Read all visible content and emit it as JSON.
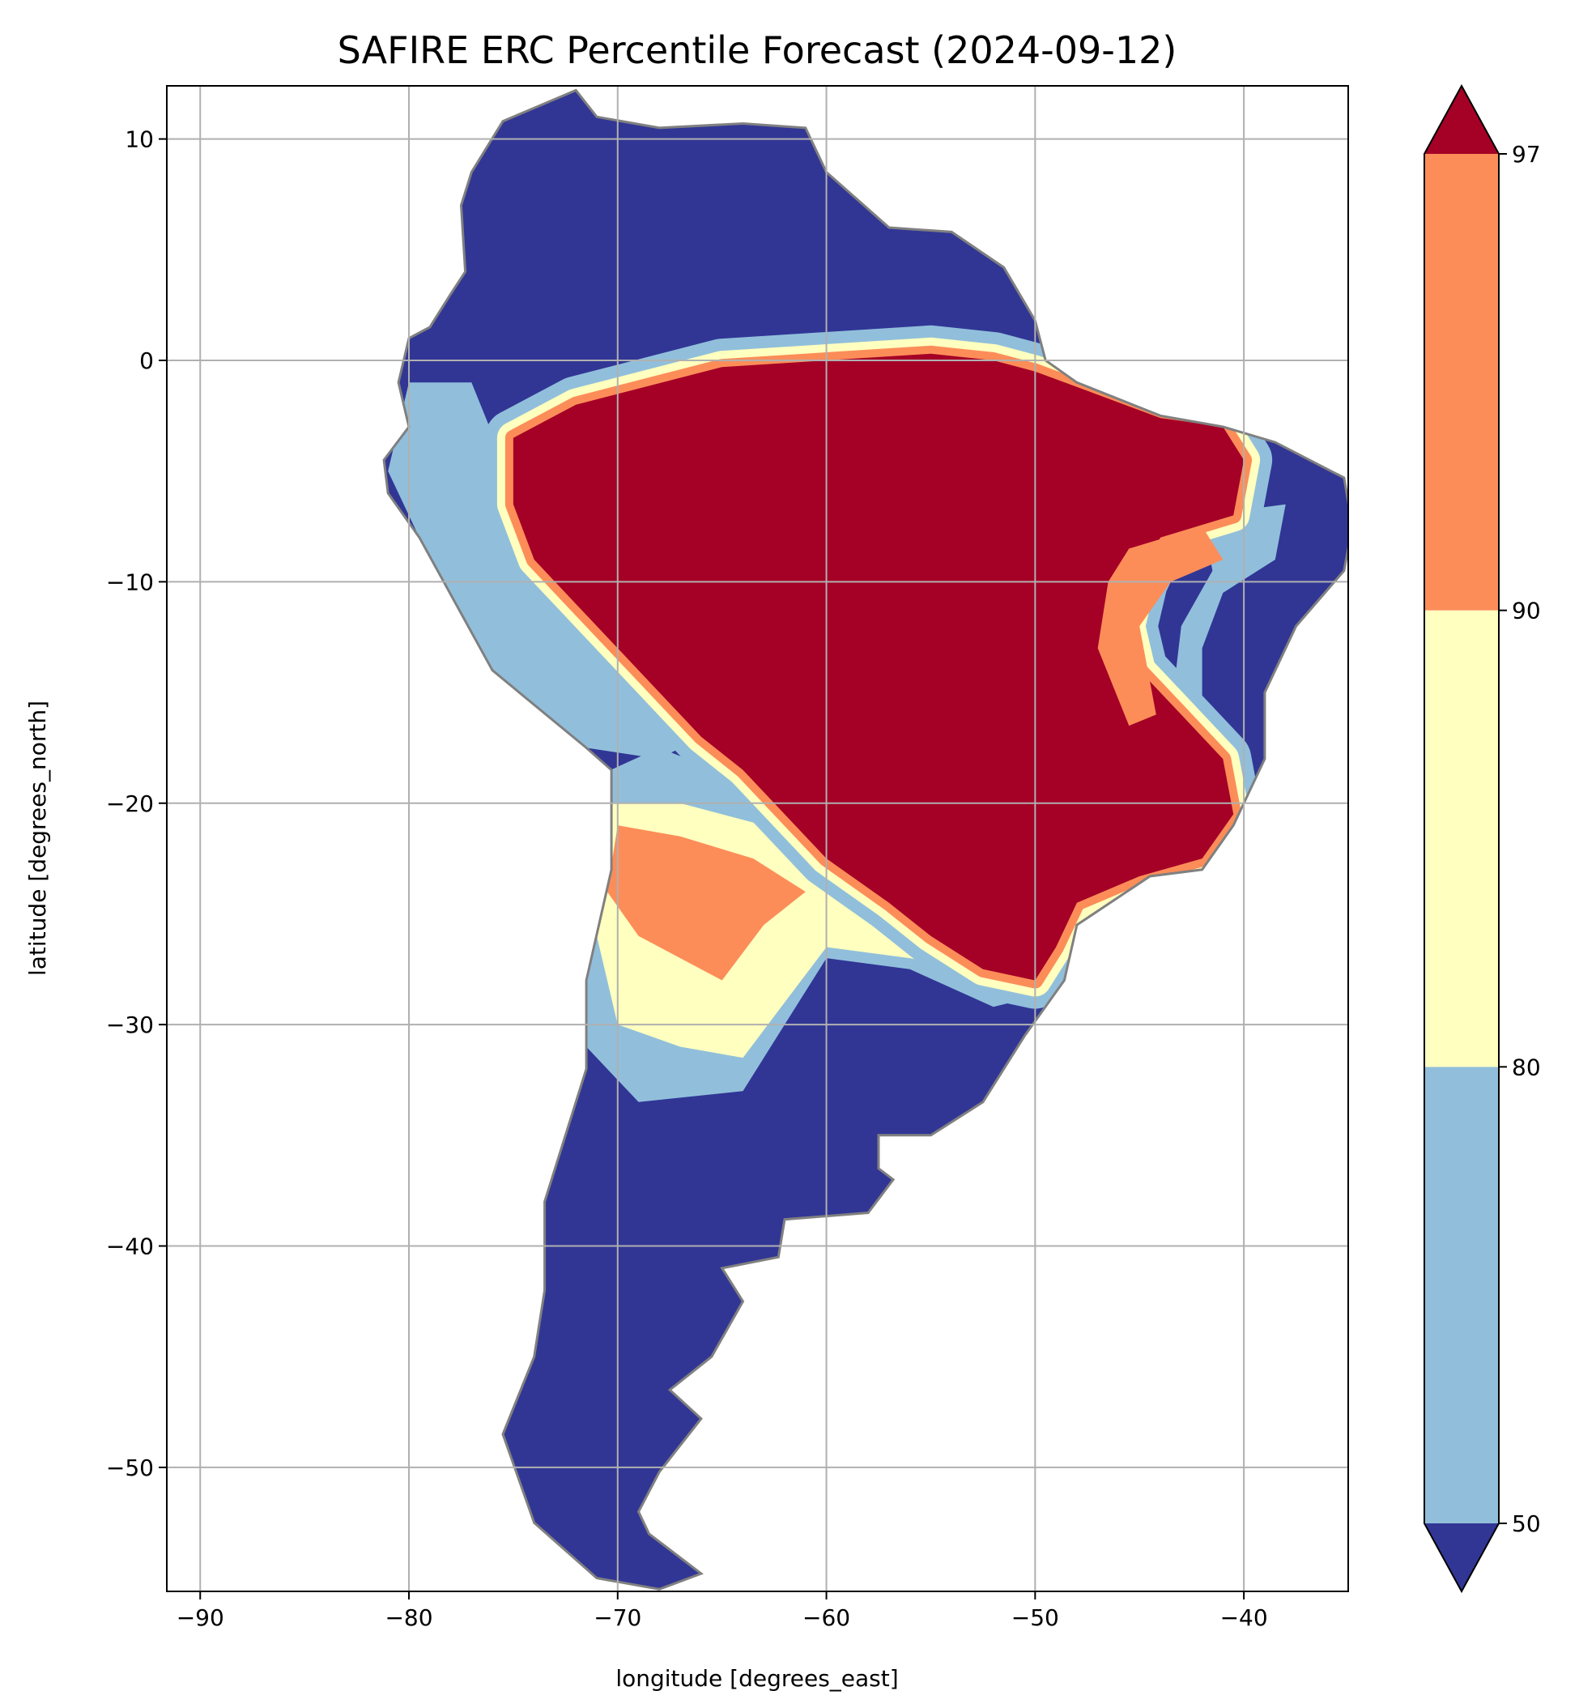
{
  "chart_data": {
    "type": "heatmap",
    "title": "SAFIRE ERC Percentile Forecast (2024-09-12)",
    "xlabel": "longitude [degrees_east]",
    "ylabel": "latitude [degrees_north]",
    "xlim": [
      -91.6,
      -35
    ],
    "ylim": [
      -55.6,
      12.4
    ],
    "xticks": [
      -90,
      -80,
      -70,
      -60,
      -50,
      -40
    ],
    "xtick_labels": [
      "−90",
      "−80",
      "−70",
      "−60",
      "−50",
      "−40"
    ],
    "yticks": [
      10,
      0,
      -10,
      -20,
      -30,
      -40,
      -50
    ],
    "ytick_labels": [
      "10",
      "0",
      "−10",
      "−20",
      "−30",
      "−40",
      "−50"
    ],
    "grid": true,
    "colorbar": {
      "levels": [
        50,
        80,
        90,
        97
      ],
      "tick_labels": [
        "50",
        "80",
        "90",
        "97"
      ],
      "extend": "both",
      "colors": {
        "below_50": "#313695",
        "50_80": "#91bfdb",
        "80_90": "#ffffbf",
        "90_97": "#fc8d59",
        "above_97": "#a50026"
      },
      "placement": "right"
    },
    "border_color": "#808080",
    "grid_color": "#b0b0b0"
  }
}
